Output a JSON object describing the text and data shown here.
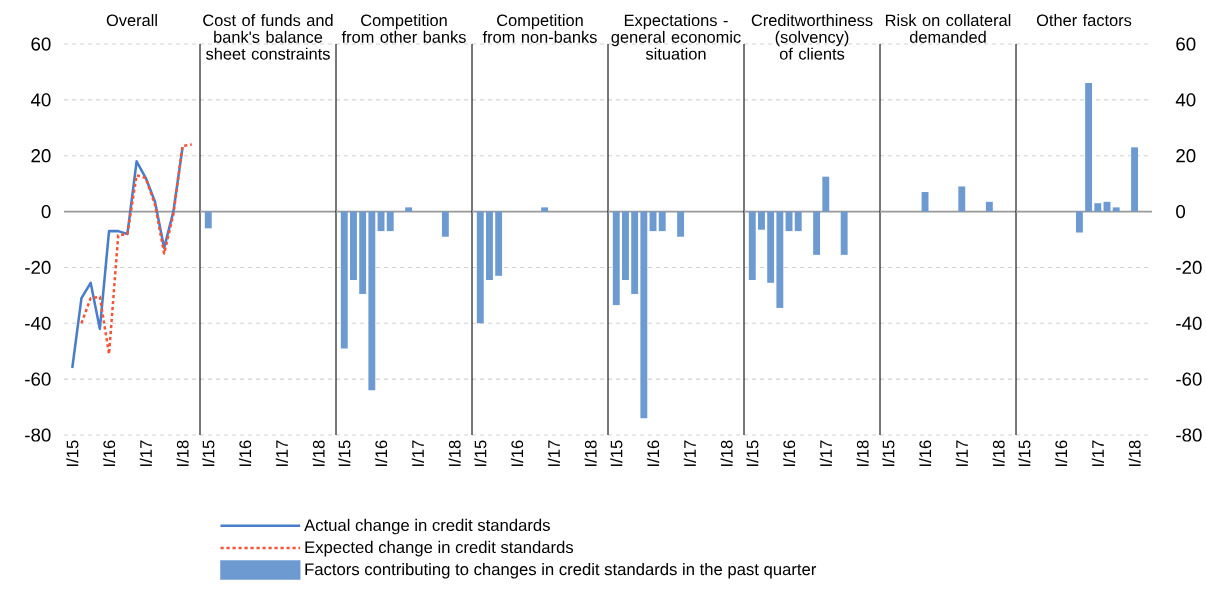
{
  "chart_data": [
    {
      "type": "line",
      "title": "Overall",
      "categories": [
        "I/15",
        null,
        null,
        null,
        "I/16",
        null,
        null,
        null,
        "I/17",
        null,
        null,
        null,
        "I/18",
        null
      ],
      "series": [
        {
          "name": "Actual change in credit standards",
          "color": "#4a7dc9",
          "line_style": "solid",
          "values": [
            -56,
            -31,
            -25.5,
            -42,
            -7,
            -7,
            -8,
            18,
            12,
            3.5,
            -13,
            0,
            23,
            null
          ]
        },
        {
          "name": "Expected change in credit standards",
          "color": "#f4553a",
          "line_style": "dotted",
          "values": [
            null,
            -40,
            -31,
            -30.5,
            -51,
            -8.5,
            -8,
            13,
            12,
            2.5,
            -15,
            -1,
            23.5,
            24
          ]
        },
        {
          "type": "bar",
          "name": "Factors contributing to changes in credit standards in the past quarter",
          "color": "#6d9ad1",
          "values": [
            null,
            null,
            null,
            null,
            null,
            null,
            null,
            null,
            null,
            null,
            null,
            null,
            null,
            null
          ]
        }
      ],
      "ylim": [
        -80,
        60
      ],
      "yticks": [
        -80,
        -60,
        -40,
        -20,
        0,
        20,
        40,
        60
      ],
      "grid": "y",
      "legend": "bottom"
    },
    {
      "type": "bar",
      "title": "Cost of funds and bank's balance sheet constraints",
      "categories": [
        "I/15",
        null,
        null,
        null,
        "I/16",
        null,
        null,
        null,
        "I/17",
        null,
        null,
        null,
        "I/18",
        null
      ],
      "series": [
        {
          "color": "#6d9ad1",
          "values": [
            -6,
            null,
            null,
            null,
            null,
            null,
            null,
            null,
            null,
            null,
            null,
            null,
            null,
            null
          ]
        }
      ],
      "ylim": [
        -80,
        60
      ],
      "yticks": [
        -80,
        -60,
        -40,
        -20,
        0,
        20,
        40,
        60
      ],
      "grid": "y",
      "tick_labels": "x"
    },
    {
      "type": "bar",
      "title": "Competition from other banks",
      "categories": [
        "I/15",
        null,
        null,
        null,
        "I/16",
        null,
        null,
        null,
        "I/17",
        null,
        null,
        null,
        "I/18",
        null
      ],
      "series": [
        {
          "color": "#6d9ad1",
          "values": [
            -49,
            -24.5,
            -29.5,
            -64,
            -7,
            -7,
            null,
            1.5,
            null,
            null,
            null,
            -9,
            null,
            null
          ]
        }
      ],
      "ylim": [
        -80,
        60
      ],
      "yticks": [
        -80,
        -60,
        -40,
        -20,
        0,
        20,
        40,
        60
      ],
      "grid": "y",
      "tick_labels": "x"
    },
    {
      "type": "bar",
      "title": "Competition from non-banks",
      "categories": [
        "I/15",
        null,
        null,
        null,
        "I/16",
        null,
        null,
        null,
        "I/17",
        null,
        null,
        null,
        "I/18",
        null
      ],
      "series": [
        {
          "color": "#6d9ad1",
          "values": [
            -40,
            -24.5,
            -23,
            null,
            null,
            null,
            null,
            1.5,
            null,
            null,
            null,
            null,
            null,
            null
          ]
        }
      ],
      "ylim": [
        -80,
        60
      ],
      "yticks": [
        -80,
        -60,
        -40,
        -20,
        0,
        20,
        40,
        60
      ],
      "grid": "y",
      "tick_labels": "x"
    },
    {
      "type": "bar",
      "title": "Expectations - general economic situation",
      "categories": [
        "I/15",
        null,
        null,
        null,
        "I/16",
        null,
        null,
        null,
        "I/17",
        null,
        null,
        null,
        "I/18",
        null
      ],
      "series": [
        {
          "color": "#6d9ad1",
          "values": [
            -33.5,
            -24.5,
            -29.5,
            -74,
            -7,
            -7,
            null,
            -9,
            null,
            null,
            null,
            null,
            null,
            null
          ]
        }
      ],
      "ylim": [
        -80,
        60
      ],
      "yticks": [
        -80,
        -60,
        -40,
        -20,
        0,
        20,
        40,
        60
      ],
      "grid": "y",
      "tick_labels": "x"
    },
    {
      "type": "bar",
      "title": "Creditworthiness (solvency) of clients",
      "categories": [
        "I/15",
        null,
        null,
        null,
        "I/16",
        null,
        null,
        null,
        "I/17",
        null,
        null,
        null,
        "I/18",
        null
      ],
      "series": [
        {
          "color": "#6d9ad1",
          "values": [
            -24.5,
            -6.5,
            -25.5,
            -34.5,
            -7,
            -7,
            null,
            -15.5,
            12.5,
            null,
            -15.5,
            null,
            null,
            null
          ]
        }
      ],
      "ylim": [
        -80,
        60
      ],
      "yticks": [
        -80,
        -60,
        -40,
        -20,
        0,
        20,
        40,
        60
      ],
      "grid": "y",
      "tick_labels": "x"
    },
    {
      "type": "bar",
      "title": "Risk on collateral demanded",
      "categories": [
        "I/15",
        null,
        null,
        null,
        "I/16",
        null,
        null,
        null,
        "I/17",
        null,
        null,
        null,
        "I/18",
        null
      ],
      "series": [
        {
          "color": "#6d9ad1",
          "values": [
            null,
            null,
            null,
            null,
            7,
            null,
            null,
            null,
            9,
            null,
            null,
            3.5,
            null,
            null
          ]
        }
      ],
      "ylim": [
        -80,
        60
      ],
      "yticks": [
        -80,
        -60,
        -40,
        -20,
        0,
        20,
        40,
        60
      ],
      "grid": "y",
      "tick_labels": "x"
    },
    {
      "type": "bar",
      "title": "Other factors",
      "categories": [
        "I/15",
        null,
        null,
        null,
        "I/16",
        null,
        null,
        null,
        "I/17",
        null,
        null,
        null,
        "I/18",
        null
      ],
      "series": [
        {
          "color": "#6d9ad1",
          "values": [
            null,
            null,
            null,
            null,
            null,
            null,
            -7.5,
            46,
            3,
            3.5,
            1.5,
            null,
            23,
            null
          ]
        }
      ],
      "ylim": [
        -80,
        60
      ],
      "yticks": [
        -80,
        -60,
        -40,
        -20,
        0,
        20,
        40,
        60
      ],
      "grid": "y"
    }
  ]
}
